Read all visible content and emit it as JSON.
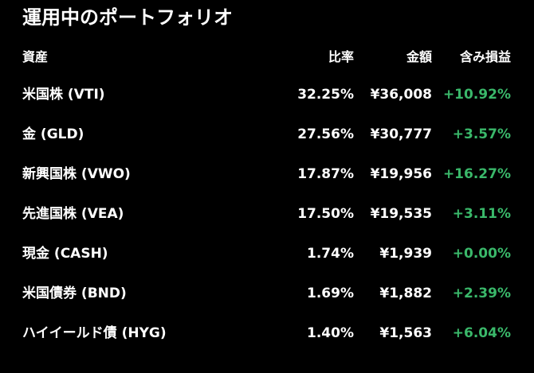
{
  "title": "運用中のポートフォリオ",
  "columns": {
    "asset": "資産",
    "ratio": "比率",
    "amount": "金額",
    "gain": "含み損益"
  },
  "holdings": [
    {
      "name": "米国株 (VTI)",
      "ratio": "32.25%",
      "amount": "¥36,008",
      "gain": "+10.92%"
    },
    {
      "name": "金 (GLD)",
      "ratio": "27.56%",
      "amount": "¥30,777",
      "gain": "+3.57%"
    },
    {
      "name": "新興国株 (VWO)",
      "ratio": "17.87%",
      "amount": "¥19,956",
      "gain": "+16.27%"
    },
    {
      "name": "先進国株 (VEA)",
      "ratio": "17.50%",
      "amount": "¥19,535",
      "gain": "+3.11%"
    },
    {
      "name": "現金 (CASH)",
      "ratio": "1.74%",
      "amount": "¥1,939",
      "gain": "+0.00%"
    },
    {
      "name": "米国債券 (BND)",
      "ratio": "1.69%",
      "amount": "¥1,882",
      "gain": "+2.39%"
    },
    {
      "name": "ハイイールド債 (HYG)",
      "ratio": "1.40%",
      "amount": "¥1,563",
      "gain": "+6.04%"
    }
  ],
  "colors": {
    "background": "#000000",
    "text": "#ffffff",
    "gain_positive": "#3ab86a"
  }
}
